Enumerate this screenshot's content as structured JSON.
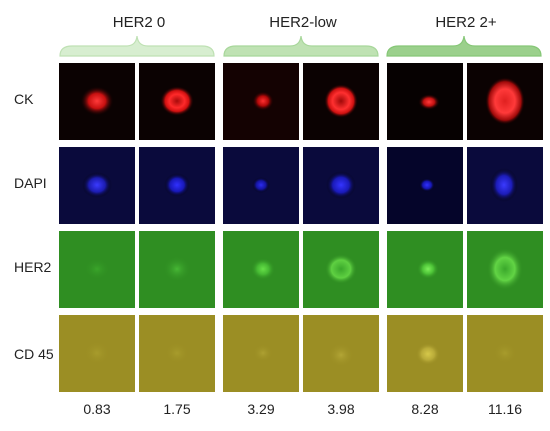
{
  "groups": [
    {
      "title": "HER2 0",
      "brace_color": "#bfe1b4"
    },
    {
      "title": "HER2-low",
      "brace_color": "#a8d79b"
    },
    {
      "title": "HER2 2+",
      "brace_color": "#86c777"
    }
  ],
  "rows": [
    {
      "label": "CK",
      "stain": "red"
    },
    {
      "label": "DAPI",
      "stain": "blue"
    },
    {
      "label": "HER2",
      "stain": "green"
    },
    {
      "label": "CD 45",
      "stain": "yellow"
    }
  ],
  "values": [
    "0.83",
    "1.75",
    "3.29",
    "3.98",
    "8.28",
    "11.16"
  ]
}
